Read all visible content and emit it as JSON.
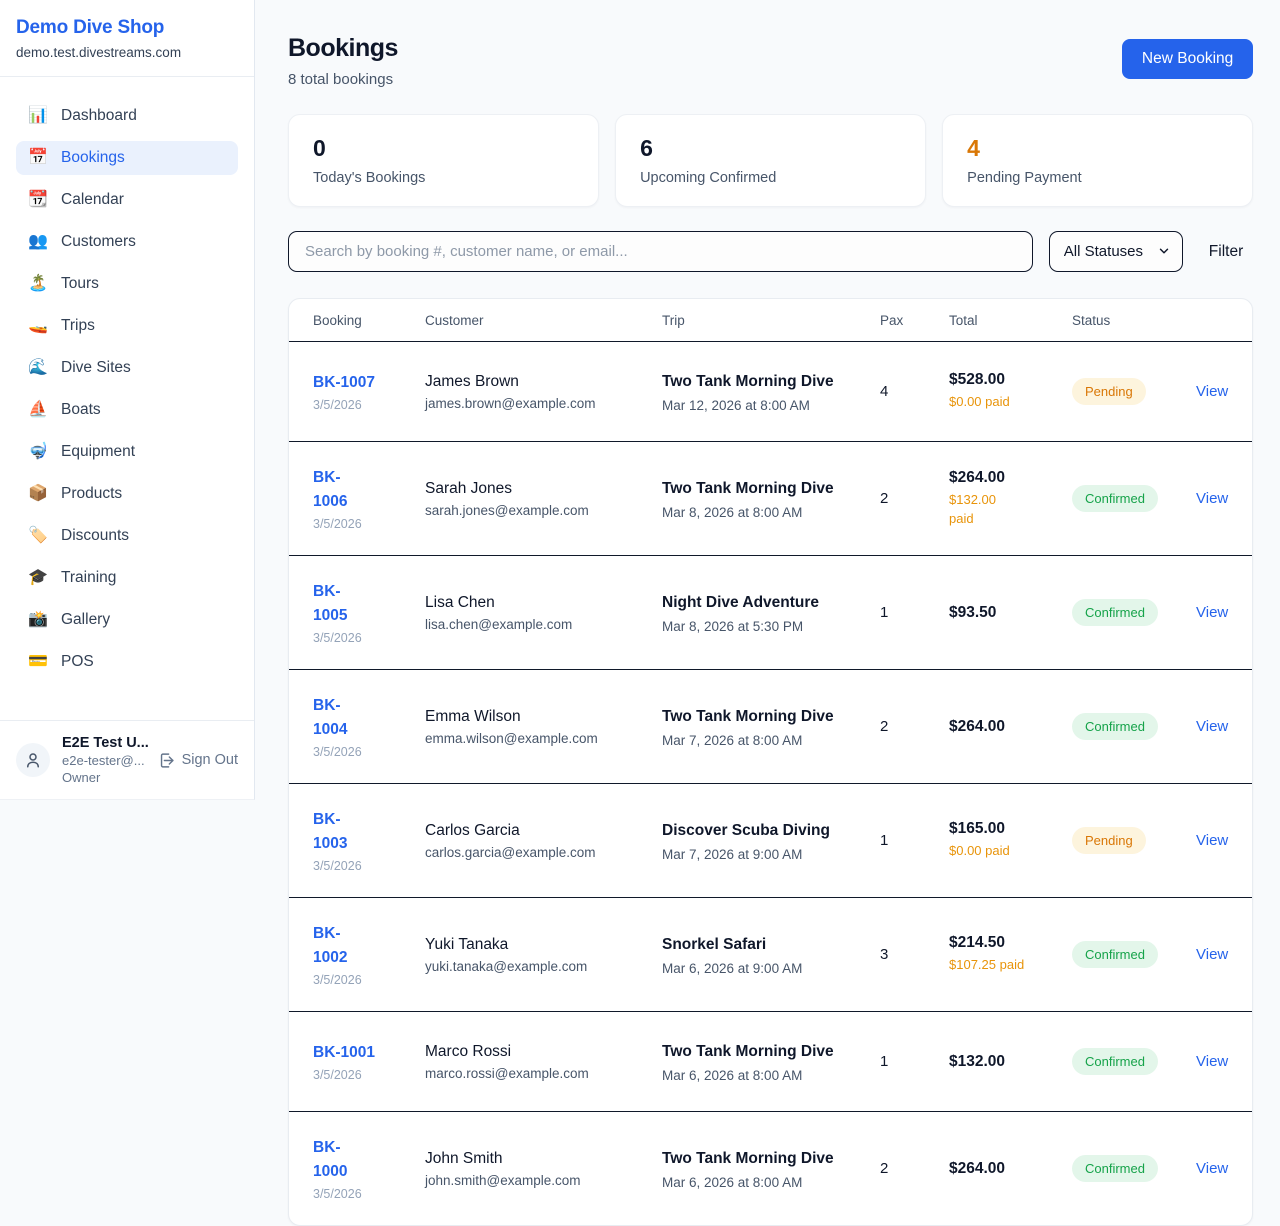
{
  "colors": {
    "accent_blue": "#2563eb",
    "pending_text": "#d97706",
    "pending_bg": "#fdf4dd",
    "confirmed_text": "#16a34a",
    "confirmed_bg": "#e3f6ea",
    "paid_orange": "#e8940a",
    "page_bg": "#f8fafc"
  },
  "sidebar": {
    "brand": {
      "name": "Demo Dive Shop",
      "domain": "demo.test.divestreams.com"
    },
    "items": [
      {
        "icon": "📊",
        "icon_name": "dashboard-icon",
        "label": "Dashboard",
        "active": false
      },
      {
        "icon": "📅",
        "icon_name": "bookings-icon",
        "label": "Bookings",
        "active": true
      },
      {
        "icon": "📆",
        "icon_name": "calendar-icon",
        "label": "Calendar",
        "active": false
      },
      {
        "icon": "👥",
        "icon_name": "customers-icon",
        "label": "Customers",
        "active": false
      },
      {
        "icon": "🏝️",
        "icon_name": "tours-icon",
        "label": "Tours",
        "active": false
      },
      {
        "icon": "🚤",
        "icon_name": "trips-icon",
        "label": "Trips",
        "active": false
      },
      {
        "icon": "🌊",
        "icon_name": "dive-sites-icon",
        "label": "Dive Sites",
        "active": false
      },
      {
        "icon": "⛵",
        "icon_name": "boats-icon",
        "label": "Boats",
        "active": false
      },
      {
        "icon": "🤿",
        "icon_name": "equipment-icon",
        "label": "Equipment",
        "active": false
      },
      {
        "icon": "📦",
        "icon_name": "products-icon",
        "label": "Products",
        "active": false
      },
      {
        "icon": "🏷️",
        "icon_name": "discounts-icon",
        "label": "Discounts",
        "active": false
      },
      {
        "icon": "🎓",
        "icon_name": "training-icon",
        "label": "Training",
        "active": false
      },
      {
        "icon": "📸",
        "icon_name": "gallery-icon",
        "label": "Gallery",
        "active": false
      },
      {
        "icon": "💳",
        "icon_name": "pos-icon",
        "label": "POS",
        "active": false
      }
    ],
    "user": {
      "name": "E2E Test U...",
      "email": "e2e-tester@...",
      "role": "Owner",
      "sign_out_label": "Sign Out"
    }
  },
  "header": {
    "title": "Bookings",
    "subtitle": "8 total bookings",
    "new_booking_label": "New Booking"
  },
  "stats": [
    {
      "value": "0",
      "label": "Today's Bookings",
      "value_color": "#0f172a"
    },
    {
      "value": "6",
      "label": "Upcoming Confirmed",
      "value_color": "#0f172a"
    },
    {
      "value": "4",
      "label": "Pending Payment",
      "value_color": "#d97706"
    }
  ],
  "toolbar": {
    "search_placeholder": "Search by booking #, customer name, or email...",
    "status_filter_selected": "All Statuses",
    "filter_label": "Filter"
  },
  "table": {
    "columns": [
      "Booking",
      "Customer",
      "Trip",
      "Pax",
      "Total",
      "Status"
    ],
    "view_label": "View",
    "rows": [
      {
        "id_lines": [
          "BK-1007"
        ],
        "date": "3/5/2026",
        "customer": "James Brown",
        "email": "james.brown@example.com",
        "trip": "Two Tank Morning Dive",
        "trip_date": "Mar 12, 2026 at 8:00 AM",
        "pax": "4",
        "total": "$528.00",
        "paid_lines": [
          "$0.00 paid"
        ],
        "status": "Pending"
      },
      {
        "id_lines": [
          "BK-",
          "1006"
        ],
        "date": "3/5/2026",
        "customer": "Sarah Jones",
        "email": "sarah.jones@example.com",
        "trip": "Two Tank Morning Dive",
        "trip_date": "Mar 8, 2026 at 8:00 AM",
        "pax": "2",
        "total": "$264.00",
        "paid_lines": [
          "$132.00",
          "paid"
        ],
        "status": "Confirmed"
      },
      {
        "id_lines": [
          "BK-",
          "1005"
        ],
        "date": "3/5/2026",
        "customer": "Lisa Chen",
        "email": "lisa.chen@example.com",
        "trip": "Night Dive Adventure",
        "trip_date": "Mar 8, 2026 at 5:30 PM",
        "pax": "1",
        "total": "$93.50",
        "paid_lines": null,
        "status": "Confirmed"
      },
      {
        "id_lines": [
          "BK-",
          "1004"
        ],
        "date": "3/5/2026",
        "customer": "Emma Wilson",
        "email": "emma.wilson@example.com",
        "trip": "Two Tank Morning Dive",
        "trip_date": "Mar 7, 2026 at 8:00 AM",
        "pax": "2",
        "total": "$264.00",
        "paid_lines": null,
        "status": "Confirmed"
      },
      {
        "id_lines": [
          "BK-",
          "1003"
        ],
        "date": "3/5/2026",
        "customer": "Carlos Garcia",
        "email": "carlos.garcia@example.com",
        "trip": "Discover Scuba Diving",
        "trip_date": "Mar 7, 2026 at 9:00 AM",
        "pax": "1",
        "total": "$165.00",
        "paid_lines": [
          "$0.00 paid"
        ],
        "status": "Pending"
      },
      {
        "id_lines": [
          "BK-",
          "1002"
        ],
        "date": "3/5/2026",
        "customer": "Yuki Tanaka",
        "email": "yuki.tanaka@example.com",
        "trip": "Snorkel Safari",
        "trip_date": "Mar 6, 2026 at 9:00 AM",
        "pax": "3",
        "total": "$214.50",
        "paid_lines": [
          "$107.25 paid"
        ],
        "status": "Confirmed"
      },
      {
        "id_lines": [
          "BK-1001"
        ],
        "date": "3/5/2026",
        "customer": "Marco Rossi",
        "email": "marco.rossi@example.com",
        "trip": "Two Tank Morning Dive",
        "trip_date": "Mar 6, 2026 at 8:00 AM",
        "pax": "1",
        "total": "$132.00",
        "paid_lines": null,
        "status": "Confirmed"
      },
      {
        "id_lines": [
          "BK-",
          "1000"
        ],
        "date": "3/5/2026",
        "customer": "John Smith",
        "email": "john.smith@example.com",
        "trip": "Two Tank Morning Dive",
        "trip_date": "Mar 6, 2026 at 8:00 AM",
        "pax": "2",
        "total": "$264.00",
        "paid_lines": null,
        "status": "Confirmed"
      }
    ]
  }
}
